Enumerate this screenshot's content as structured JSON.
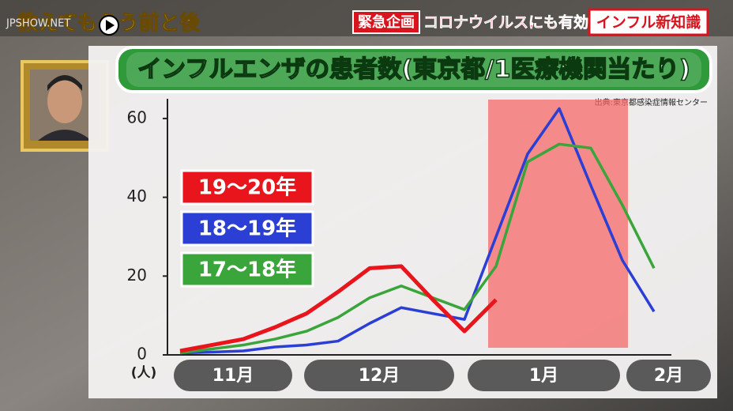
{
  "header": {
    "watermark": "JPSHOW.NET",
    "show_title": "教えてもらう前と後",
    "tag": "緊急企画",
    "topic": "コロナウイルスにも有効",
    "series_name": "インフル新知識"
  },
  "chart_data": {
    "type": "line",
    "title": "インフルエンザの患者数(東京都/1医療機関当たり)",
    "source": "出典:東京都感染症情報センター",
    "y_unit": "(人)",
    "x_labels": [
      "11月",
      "12月",
      "1月",
      "2月"
    ],
    "categories": [
      null,
      null,
      null,
      null,
      null,
      null,
      null,
      null,
      null,
      null,
      null,
      null,
      null,
      null,
      null,
      null
    ],
    "ylim": [
      0,
      65
    ],
    "yticks": [
      0,
      20,
      40,
      60
    ],
    "series": [
      {
        "name": "19〜20年",
        "color": "#e8151d",
        "values": [
          1,
          2.5,
          4,
          7,
          10.5,
          16,
          22,
          22.5,
          14,
          6,
          14,
          null,
          null,
          null,
          null,
          null
        ]
      },
      {
        "name": "18〜19年",
        "color": "#2b3fd4",
        "values": [
          0.5,
          0.7,
          1,
          2,
          2.5,
          3.5,
          8,
          12,
          10.5,
          9,
          30,
          51,
          62.5,
          43,
          24,
          11
        ]
      },
      {
        "name": "17〜18年",
        "color": "#3aa53a",
        "values": [
          0.5,
          1.5,
          2.5,
          4,
          6,
          9.5,
          14.5,
          17.5,
          14.5,
          11.5,
          22.5,
          49,
          53.5,
          52.5,
          38,
          22
        ]
      }
    ]
  }
}
